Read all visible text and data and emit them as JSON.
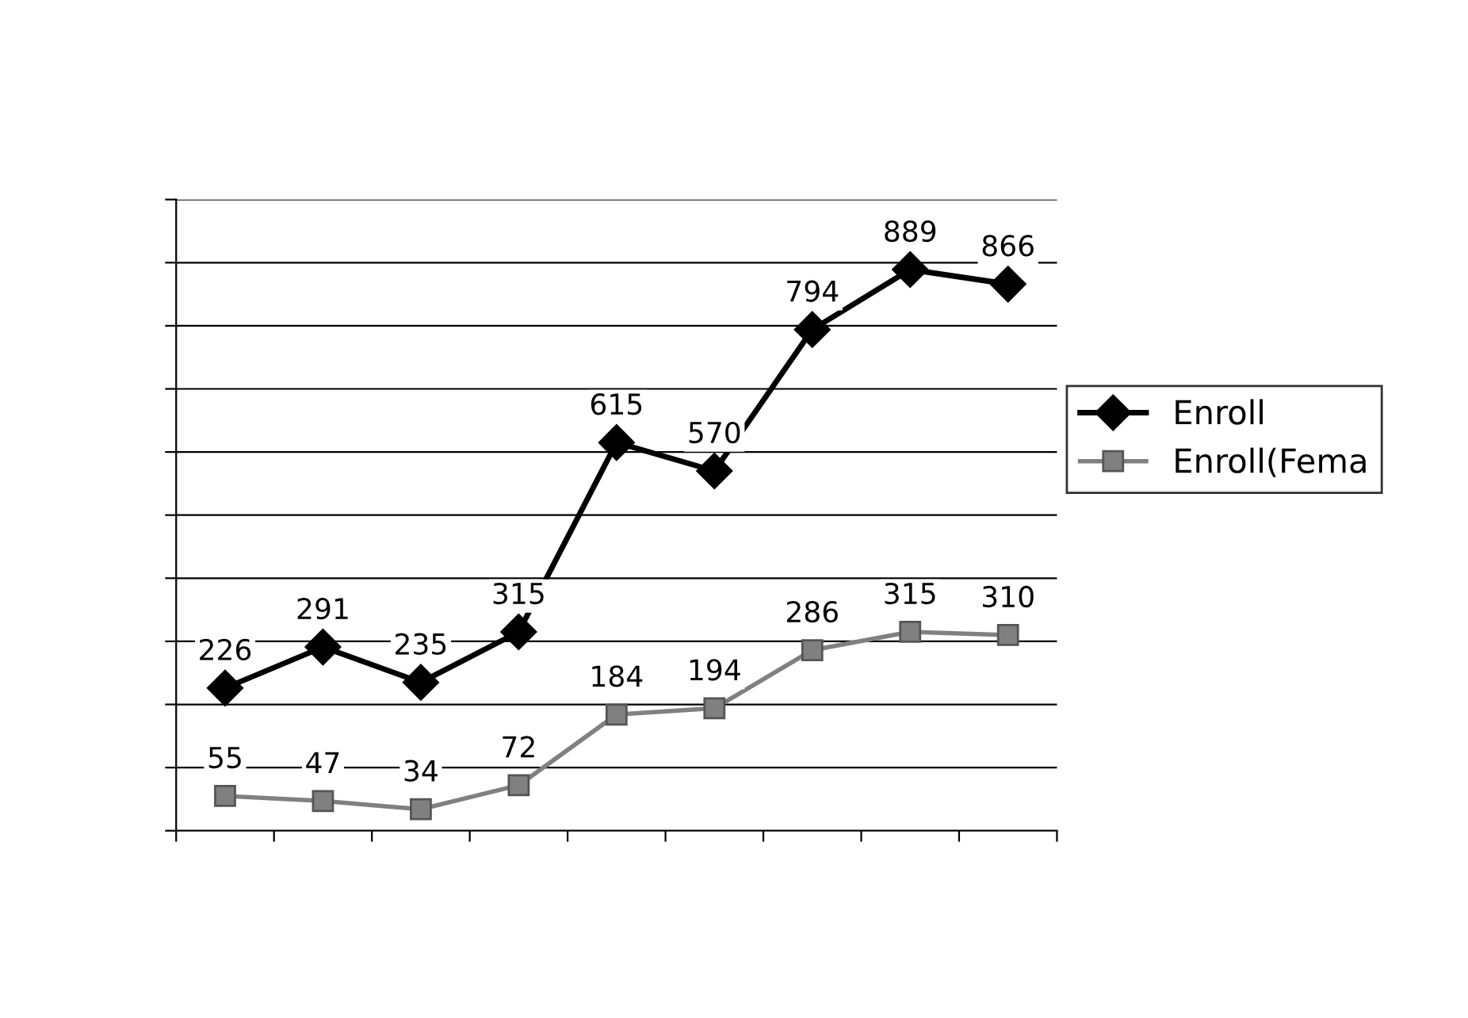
{
  "chart_data": {
    "type": "line",
    "categories": [
      null,
      null,
      null,
      null,
      null,
      null,
      null,
      null,
      null
    ],
    "series": [
      {
        "name": "Enroll",
        "color": "#000000",
        "marker": "diamond",
        "values": [
          226,
          291,
          235,
          315,
          615,
          570,
          794,
          889,
          866
        ]
      },
      {
        "name": "Enroll(Fema",
        "color": "#808080",
        "marker": "square",
        "values": [
          55,
          47,
          34,
          72,
          184,
          194,
          286,
          315,
          310
        ]
      }
    ],
    "ylim": [
      0,
      1000
    ],
    "yticks": [
      {
        "value": 0,
        "label": null
      },
      {
        "value": 100,
        "label": null
      },
      {
        "value": 200,
        "label": null
      },
      {
        "value": 300,
        "label": null
      },
      {
        "value": 400,
        "label": null
      },
      {
        "value": 500,
        "label": null
      },
      {
        "value": 600,
        "label": null
      },
      {
        "value": 700,
        "label": null
      },
      {
        "value": 800,
        "label": null
      },
      {
        "value": 900,
        "label": null
      },
      {
        "value": 1000,
        "label": null
      }
    ],
    "grid": "y",
    "legend": "right",
    "data_labels": true,
    "line_style": "solid"
  }
}
